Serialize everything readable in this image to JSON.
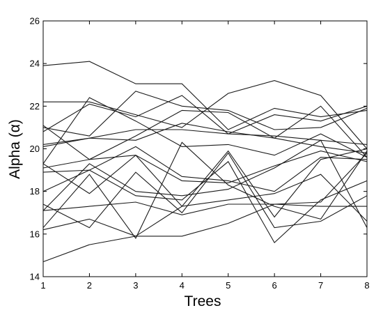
{
  "chart_data": {
    "type": "line",
    "title": "",
    "xlabel": "Trees",
    "ylabel": "Alpha (α)",
    "xlim": [
      1,
      8
    ],
    "ylim": [
      14,
      26
    ],
    "x_ticks": [
      1,
      2,
      3,
      4,
      5,
      6,
      7,
      8
    ],
    "y_ticks": [
      14,
      16,
      18,
      20,
      22,
      24,
      26
    ],
    "grid": false,
    "legend": "none",
    "x": [
      1,
      2,
      3,
      4,
      5,
      6,
      7,
      8
    ],
    "series": [
      {
        "values": [
          23.9,
          24.1,
          23.05,
          23.05,
          20.9,
          21.9,
          21.5,
          21.8
        ]
      },
      {
        "values": [
          22.2,
          22.2,
          21.6,
          21.0,
          22.6,
          23.2,
          22.5,
          20.0
        ]
      },
      {
        "values": [
          21.0,
          20.6,
          22.7,
          22.0,
          21.8,
          20.9,
          21.0,
          21.9
        ]
      },
      {
        "values": [
          20.8,
          22.1,
          21.5,
          22.5,
          20.7,
          21.6,
          21.3,
          22.0
        ]
      },
      {
        "values": [
          20.2,
          20.5,
          20.9,
          20.9,
          20.7,
          20.6,
          20.4,
          20.2
        ]
      },
      {
        "values": [
          20.1,
          20.5,
          20.4,
          21.2,
          20.8,
          20.5,
          20.1,
          19.8
        ]
      },
      {
        "values": [
          19.3,
          22.4,
          21.3,
          20.1,
          20.2,
          19.7,
          20.7,
          19.6
        ]
      },
      {
        "values": [
          21.1,
          19.5,
          20.6,
          21.8,
          21.7,
          20.5,
          22.0,
          19.6
        ]
      },
      {
        "values": [
          18.9,
          19.0,
          20.1,
          18.7,
          18.5,
          18.0,
          19.6,
          19.5
        ]
      },
      {
        "values": [
          19.1,
          19.5,
          19.7,
          18.5,
          18.4,
          19.2,
          19.9,
          19.4
        ]
      },
      {
        "values": [
          17.1,
          19.3,
          18.0,
          17.8,
          18.1,
          19.1,
          20.4,
          16.3
        ]
      },
      {
        "values": [
          19.3,
          17.9,
          19.7,
          17.3,
          17.6,
          17.9,
          18.8,
          16.6
        ]
      },
      {
        "values": [
          18.0,
          19.0,
          17.8,
          17.6,
          19.4,
          15.6,
          17.6,
          18.5
        ]
      },
      {
        "values": [
          16.3,
          18.8,
          15.8,
          20.3,
          18.3,
          17.3,
          16.7,
          19.9
        ]
      },
      {
        "values": [
          17.4,
          16.3,
          18.9,
          17.0,
          19.8,
          16.3,
          16.6,
          17.8
        ]
      },
      {
        "values": [
          17.1,
          17.3,
          17.5,
          16.9,
          17.4,
          17.4,
          17.5,
          19.8
        ]
      },
      {
        "values": [
          16.2,
          16.7,
          15.9,
          15.9,
          16.5,
          17.4,
          17.3,
          17.3
        ]
      },
      {
        "values": [
          14.7,
          15.5,
          15.9,
          17.3,
          19.9,
          16.8,
          19.5,
          20.0
        ]
      }
    ]
  }
}
